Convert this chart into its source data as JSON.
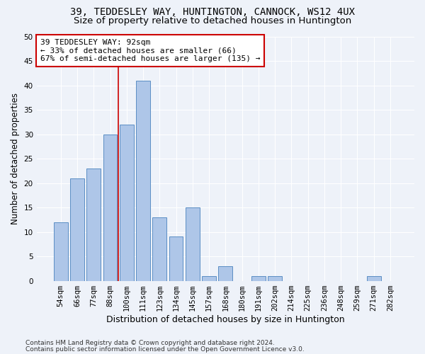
{
  "title": "39, TEDDESLEY WAY, HUNTINGTON, CANNOCK, WS12 4UX",
  "subtitle": "Size of property relative to detached houses in Huntington",
  "xlabel": "Distribution of detached houses by size in Huntington",
  "ylabel": "Number of detached properties",
  "bar_labels": [
    "54sqm",
    "66sqm",
    "77sqm",
    "88sqm",
    "100sqm",
    "111sqm",
    "123sqm",
    "134sqm",
    "145sqm",
    "157sqm",
    "168sqm",
    "180sqm",
    "191sqm",
    "202sqm",
    "214sqm",
    "225sqm",
    "236sqm",
    "248sqm",
    "259sqm",
    "271sqm",
    "282sqm"
  ],
  "bar_heights": [
    12,
    21,
    23,
    30,
    32,
    41,
    13,
    9,
    15,
    1,
    3,
    0,
    1,
    1,
    0,
    0,
    0,
    0,
    0,
    1,
    0
  ],
  "bar_color": "#aec6e8",
  "bar_edge_color": "#5b8ec4",
  "vline_x": 3.5,
  "vline_color": "#cc0000",
  "annotation_text": "39 TEDDESLEY WAY: 92sqm\n← 33% of detached houses are smaller (66)\n67% of semi-detached houses are larger (135) →",
  "annotation_box_color": "#ffffff",
  "annotation_box_edge": "#cc0000",
  "ylim": [
    0,
    50
  ],
  "yticks": [
    0,
    5,
    10,
    15,
    20,
    25,
    30,
    35,
    40,
    45,
    50
  ],
  "footer1": "Contains HM Land Registry data © Crown copyright and database right 2024.",
  "footer2": "Contains public sector information licensed under the Open Government Licence v3.0.",
  "bg_color": "#eef2f9",
  "grid_color": "#ffffff",
  "title_fontsize": 10,
  "subtitle_fontsize": 9.5,
  "axis_label_fontsize": 8.5,
  "tick_fontsize": 7.5,
  "footer_fontsize": 6.5,
  "annotation_fontsize": 8
}
